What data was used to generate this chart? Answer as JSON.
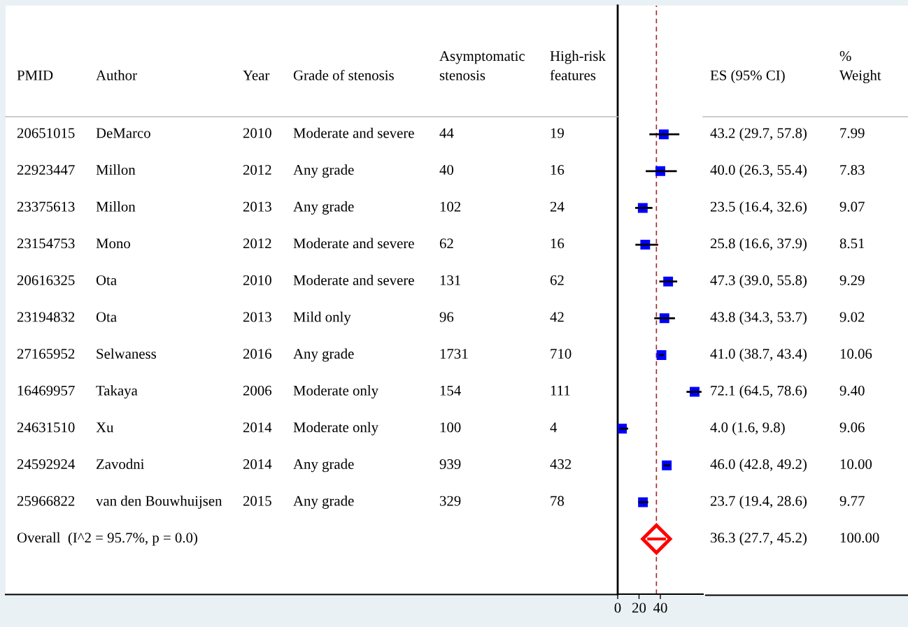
{
  "chart_data": [
    {
      "type": "other",
      "categories": [
        "PMID",
        "Author",
        "Year",
        "Grade of stenosis",
        "Asymptomatic\nstenosis",
        "High-risk\nfeatures"
      ],
      "annotations": [
        "20651015",
        "DeMarco",
        "2010",
        "Moderate and severe",
        "44",
        "19",
        "22923447",
        "Millon",
        "2012",
        "Any grade",
        "40",
        "16",
        "23375613",
        "Millon",
        "2013",
        "Any grade",
        "102",
        "24",
        "23154753",
        "Mono",
        "2012",
        "Moderate and severe",
        "62",
        "16",
        "20616325",
        "Ota",
        "2010",
        "Moderate and severe",
        "131",
        "62",
        "23194832",
        "Ota",
        "2013",
        "Mild only",
        "96",
        "42",
        "27165952",
        "Selwaness",
        "2016",
        "Any grade",
        "1731",
        "710",
        "16469957",
        "Takaya",
        "2006",
        "Moderate only",
        "154",
        "111",
        "24631510",
        "Xu",
        "2014",
        "Moderate only",
        "100",
        "4",
        "24592924",
        "Zavodni",
        "2014",
        "Any grade",
        "939",
        "432",
        "25966822",
        "van den Bouwhuijsen",
        "2015",
        "Any grade",
        "329",
        "78",
        "Overall  (I^2 = 95.7%, p = 0.0)"
      ]
    },
    {
      "type": "scatter",
      "orientation": "horizontal",
      "categories": [
        null,
        null,
        null,
        null,
        null,
        null,
        null,
        null,
        null,
        null,
        null,
        null,
        null,
        null,
        null,
        null
      ],
      "series": [
        {
          "color": "#0000ff",
          "marker": "square",
          "values": [
            null,
            null,
            null,
            43.2,
            40.0,
            23.5,
            25.8,
            47.3,
            43.8,
            41.0,
            72.1,
            4.0,
            46.0,
            23.7,
            null,
            null
          ],
          "errors": [
            null,
            null,
            null,
            [
              29.7,
              57.8
            ],
            [
              26.3,
              55.4
            ],
            [
              16.4,
              32.6
            ],
            [
              16.6,
              37.9
            ],
            [
              39.0,
              55.8
            ],
            [
              34.3,
              53.7
            ],
            [
              38.7,
              43.4
            ],
            [
              64.5,
              78.6
            ],
            [
              1.6,
              9.8
            ],
            [
              42.8,
              49.2
            ],
            [
              19.4,
              28.6
            ],
            null,
            null
          ]
        },
        {
          "color": "#ff0000",
          "marker": "diamond",
          "values": [
            null,
            null,
            null,
            null,
            null,
            null,
            null,
            null,
            null,
            null,
            null,
            null,
            null,
            null,
            36.3,
            null
          ],
          "errors": [
            null,
            null,
            null,
            null,
            null,
            null,
            null,
            null,
            null,
            null,
            null,
            null,
            null,
            null,
            [
              27.7,
              45.2
            ],
            null
          ]
        }
      ],
      "xlim": [
        0,
        80
      ],
      "xticks": [
        0,
        20,
        40
      ],
      "ref_lines": [
        {
          "axis": "x",
          "value": 36.3,
          "color": "#a52a2a",
          "line_style": "dashed"
        }
      ],
      "grid": false
    },
    {
      "type": "other",
      "categories": [
        "ES (95% CI)",
        "%\nWeight"
      ],
      "annotations": [
        "43.2 (29.7, 57.8)",
        "7.99",
        "40.0 (26.3, 55.4)",
        "7.83",
        "23.5 (16.4, 32.6)",
        "9.07",
        "25.8 (16.6, 37.9)",
        "8.51",
        "47.3 (39.0, 55.8)",
        "9.29",
        "43.8 (34.3, 53.7)",
        "9.02",
        "41.0 (38.7, 43.4)",
        "10.06",
        "72.1 (64.5, 78.6)",
        "9.40",
        "4.0 (1.6, 9.8)",
        "9.06",
        "46.0 (42.8, 49.2)",
        "10.00",
        "23.7 (19.4, 28.6)",
        "9.77",
        "36.3 (27.7, 45.2)",
        "100.00"
      ]
    }
  ]
}
